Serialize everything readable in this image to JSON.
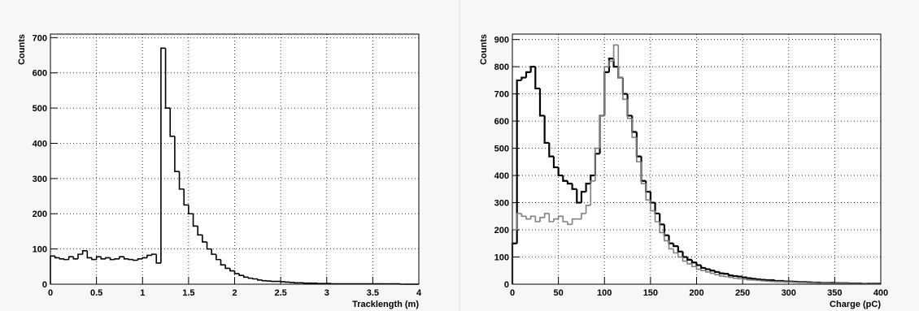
{
  "chart_data": [
    {
      "type": "histogram",
      "x_label": "Tracklength (m)",
      "y_label": "Counts",
      "bins": [
        0,
        0.05,
        0.1,
        0.15,
        0.2,
        0.25,
        0.3,
        0.35,
        0.4,
        0.45,
        0.5,
        0.55,
        0.6,
        0.65,
        0.7,
        0.75,
        0.8,
        0.85,
        0.9,
        0.95,
        1,
        1.05,
        1.1,
        1.15,
        1.2,
        1.25,
        1.3,
        1.35,
        1.4,
        1.45,
        1.5,
        1.55,
        1.6,
        1.65,
        1.7,
        1.75,
        1.8,
        1.85,
        1.9,
        1.95,
        2,
        2.05,
        2.1,
        2.15,
        2.2,
        2.25,
        2.3,
        2.35,
        2.4,
        2.45,
        2.5,
        2.55,
        2.6,
        2.65,
        2.7,
        2.75,
        2.8,
        2.85,
        2.9,
        2.95,
        3,
        3.05,
        3.1,
        3.15,
        3.2,
        3.25,
        3.3,
        3.35,
        3.4,
        3.45,
        3.5,
        3.55,
        3.6,
        3.65,
        3.7,
        3.75,
        3.8,
        3.85,
        3.9,
        3.95,
        4
      ],
      "series": [
        {
          "color": "#000000",
          "values": [
            80,
            75,
            72,
            70,
            78,
            72,
            85,
            95,
            75,
            70,
            78,
            72,
            75,
            70,
            72,
            78,
            72,
            70,
            68,
            72,
            75,
            82,
            85,
            60,
            670,
            500,
            420,
            320,
            270,
            225,
            200,
            165,
            140,
            120,
            100,
            85,
            70,
            55,
            45,
            38,
            30,
            25,
            20,
            17,
            15,
            12,
            10,
            9,
            8,
            8,
            7,
            6,
            5,
            4,
            4,
            3,
            3,
            3,
            2,
            2,
            2,
            1,
            1,
            1,
            1,
            1,
            1,
            1,
            1,
            1,
            1,
            1,
            1,
            1,
            1,
            1,
            0,
            0,
            0,
            0
          ]
        }
      ],
      "xlim": [
        0,
        4
      ],
      "ylim": [
        0,
        710
      ],
      "xticks": [
        0,
        0.5,
        1,
        1.5,
        2,
        2.5,
        3,
        3.5,
        4
      ],
      "yticks": [
        0,
        100,
        200,
        300,
        400,
        500,
        600,
        700
      ],
      "grid": true
    },
    {
      "type": "histogram",
      "x_label": "Charge (pC)",
      "y_label": "Counts",
      "bins": [
        0,
        5,
        10,
        15,
        20,
        25,
        30,
        35,
        40,
        45,
        50,
        55,
        60,
        65,
        70,
        75,
        80,
        85,
        90,
        95,
        100,
        105,
        110,
        115,
        120,
        125,
        130,
        135,
        140,
        145,
        150,
        155,
        160,
        165,
        170,
        175,
        180,
        185,
        190,
        195,
        200,
        205,
        210,
        215,
        220,
        225,
        230,
        235,
        240,
        245,
        250,
        255,
        260,
        265,
        270,
        275,
        280,
        285,
        290,
        295,
        300,
        305,
        310,
        315,
        320,
        325,
        330,
        335,
        340,
        345,
        350,
        355,
        360,
        365,
        370,
        375,
        380,
        385,
        390,
        395,
        400
      ],
      "series": [
        {
          "color": "#000000",
          "values": [
            150,
            750,
            760,
            780,
            800,
            720,
            620,
            520,
            470,
            430,
            400,
            380,
            370,
            350,
            300,
            340,
            370,
            400,
            480,
            620,
            780,
            830,
            800,
            760,
            700,
            620,
            560,
            470,
            380,
            340,
            300,
            260,
            220,
            180,
            150,
            140,
            120,
            100,
            90,
            80,
            70,
            60,
            55,
            50,
            45,
            40,
            38,
            32,
            30,
            28,
            25,
            22,
            20,
            18,
            16,
            15,
            15,
            12,
            12,
            10,
            10,
            9,
            8,
            8,
            7,
            6,
            6,
            5,
            5,
            5,
            4,
            4,
            4,
            3,
            3,
            3,
            2,
            2,
            2,
            2
          ]
        },
        {
          "color": "#808080",
          "values": [
            200,
            260,
            250,
            240,
            250,
            230,
            245,
            260,
            230,
            240,
            250,
            230,
            220,
            240,
            240,
            260,
            290,
            380,
            500,
            620,
            800,
            820,
            880,
            760,
            680,
            610,
            540,
            450,
            370,
            310,
            270,
            230,
            190,
            160,
            130,
            115,
            100,
            85,
            75,
            65,
            55,
            50,
            45,
            40,
            35,
            30,
            28,
            25,
            22,
            20,
            18,
            16,
            15,
            14,
            12,
            11,
            10,
            9,
            9,
            8,
            8,
            7,
            6,
            6,
            5,
            5,
            4,
            4,
            4,
            3,
            3,
            3,
            3,
            2,
            2,
            2,
            2,
            1,
            1,
            1
          ]
        }
      ],
      "xlim": [
        0,
        400
      ],
      "ylim": [
        0,
        920
      ],
      "xticks": [
        0,
        50,
        100,
        150,
        200,
        250,
        300,
        350,
        400
      ],
      "yticks": [
        0,
        100,
        200,
        300,
        400,
        500,
        600,
        700,
        800,
        900
      ],
      "grid": true
    }
  ]
}
